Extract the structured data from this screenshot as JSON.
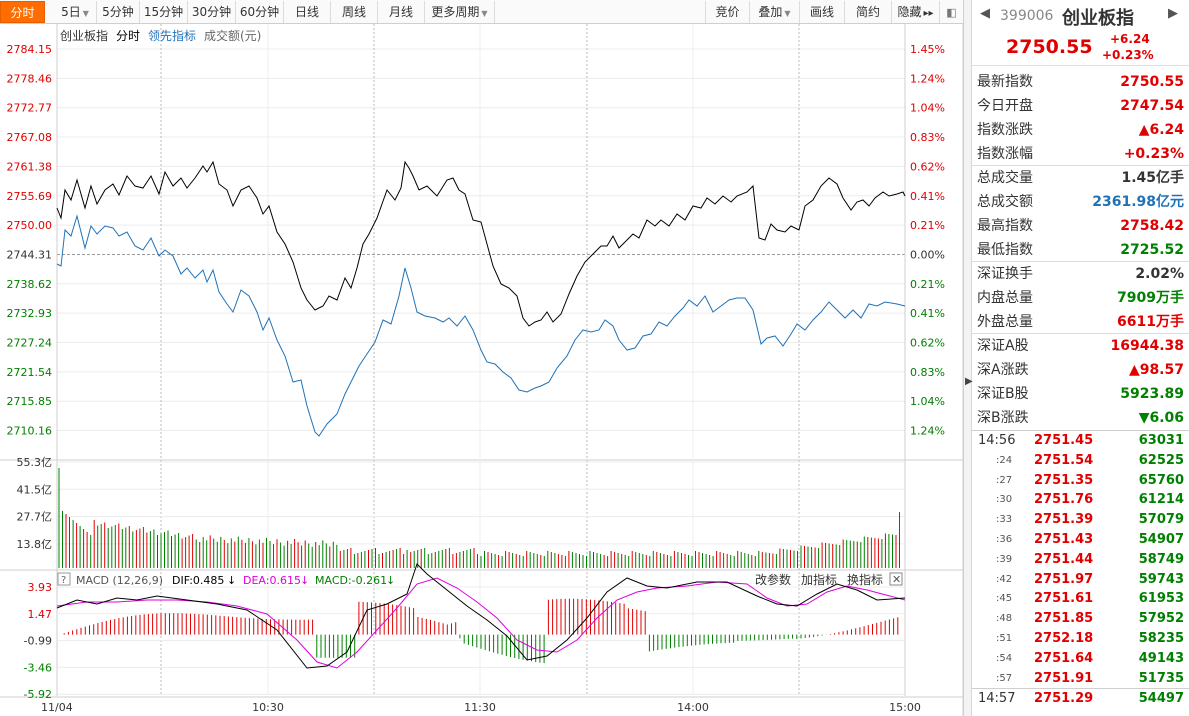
{
  "toolbar": {
    "tabs": [
      {
        "label": "分时",
        "active": true
      },
      {
        "label": "5日",
        "dropdown": true
      },
      {
        "label": "5分钟"
      },
      {
        "label": "15分钟"
      },
      {
        "label": "30分钟"
      },
      {
        "label": "60分钟"
      },
      {
        "label": "日线"
      },
      {
        "label": "周线"
      },
      {
        "label": "月线"
      },
      {
        "label": "更多周期",
        "dropdown": true
      }
    ],
    "right_buttons": [
      {
        "label": "竞价"
      },
      {
        "label": "叠加",
        "dropdown": true
      },
      {
        "label": "画线"
      },
      {
        "label": "简约"
      },
      {
        "label": "隐藏",
        "arrows": "▸▸"
      }
    ],
    "accent_color": "#ff6c00"
  },
  "price_chart": {
    "legend": {
      "index_name": "创业板指",
      "mode": "分时",
      "leading": "领先指标",
      "volume": "成交额(元)"
    },
    "y_labels": [
      "2784.15",
      "2778.46",
      "2772.77",
      "2767.08",
      "2761.38",
      "2755.69",
      "2750.00",
      "2744.31",
      "2738.62",
      "2732.93",
      "2727.24",
      "2721.54",
      "2715.85",
      "2710.16"
    ],
    "pct_labels": [
      "1.45%",
      "1.24%",
      "1.04%",
      "0.83%",
      "0.62%",
      "0.41%",
      "0.21%",
      "0.00%",
      "0.21%",
      "0.41%",
      "0.62%",
      "0.83%",
      "1.04%",
      "1.24%"
    ],
    "prev_close": 2744.31
  },
  "volume_chart": {
    "y_labels": [
      "55.3亿",
      "41.5亿",
      "27.7亿",
      "13.8亿"
    ]
  },
  "macd_chart": {
    "title": "MACD (12,26,9)",
    "dif_label": "DIF:0.485",
    "dea_label": "DEA:0.615",
    "macd_label": "MACD:-0.261",
    "buttons": [
      "改参数",
      "加指标",
      "换指标"
    ],
    "y_labels": [
      "3.93",
      "1.47",
      "-0.99",
      "-3.46",
      "-5.92"
    ]
  },
  "x_axis": {
    "labels": [
      "11/04",
      "10:30",
      "11:30",
      "14:00",
      "15:00"
    ]
  },
  "colors": {
    "up": "#e00000",
    "down": "#008000",
    "price_line": "#000000",
    "leading_line": "#1f72b8",
    "dea_line": "#e000e0"
  },
  "panel": {
    "code": "399006",
    "name": "创业板指",
    "price": "2750.55",
    "change": "+6.24",
    "change_pct": "+0.23%",
    "stats": [
      {
        "label": "最新指数",
        "value": "2750.55",
        "color": "red"
      },
      {
        "label": "今日开盘",
        "value": "2747.54",
        "color": "red"
      },
      {
        "label": "指数涨跌",
        "value": "▲6.24",
        "color": "red"
      },
      {
        "label": "指数涨幅",
        "value": "+0.23%",
        "color": "red",
        "sep": true
      },
      {
        "label": "总成交量",
        "value": "1.45亿手",
        "color": "black"
      },
      {
        "label": "总成交额",
        "value": "2361.98亿元",
        "color": "blue"
      },
      {
        "label": "最高指数",
        "value": "2758.42",
        "color": "red"
      },
      {
        "label": "最低指数",
        "value": "2725.52",
        "color": "green",
        "sep": true
      },
      {
        "label": "深证换手",
        "value": "2.02%",
        "color": "black"
      },
      {
        "label": "内盘总量",
        "value": "7909万手",
        "color": "green"
      },
      {
        "label": "外盘总量",
        "value": "6611万手",
        "color": "red",
        "sep": true
      },
      {
        "label": "深证A股",
        "value": "16944.38",
        "color": "red"
      },
      {
        "label": "深A涨跌",
        "value": "▲98.57",
        "color": "red"
      },
      {
        "label": "深证B股",
        "value": "5923.89",
        "color": "green"
      },
      {
        "label": "深B涨跌",
        "value": "▼6.06",
        "color": "green"
      }
    ],
    "trades": [
      {
        "time": "14:56",
        "price": "2751.45",
        "volume": "63031",
        "full": true
      },
      {
        "time": ":24",
        "price": "2751.54",
        "volume": "62525"
      },
      {
        "time": ":27",
        "price": "2751.35",
        "volume": "65760"
      },
      {
        "time": ":30",
        "price": "2751.76",
        "volume": "61214"
      },
      {
        "time": ":33",
        "price": "2751.39",
        "volume": "57079"
      },
      {
        "time": ":36",
        "price": "2751.43",
        "volume": "54907"
      },
      {
        "time": ":39",
        "price": "2751.44",
        "volume": "58749"
      },
      {
        "time": ":42",
        "price": "2751.97",
        "volume": "59743"
      },
      {
        "time": ":45",
        "price": "2751.61",
        "volume": "61953"
      },
      {
        "time": ":48",
        "price": "2751.85",
        "volume": "57952"
      },
      {
        "time": ":51",
        "price": "2752.18",
        "volume": "58235"
      },
      {
        "time": ":54",
        "price": "2751.64",
        "volume": "49143"
      },
      {
        "time": ":57",
        "price": "2751.91",
        "volume": "51735"
      },
      {
        "time": "14:57",
        "price": "2751.29",
        "volume": "54497",
        "full": true
      }
    ]
  }
}
